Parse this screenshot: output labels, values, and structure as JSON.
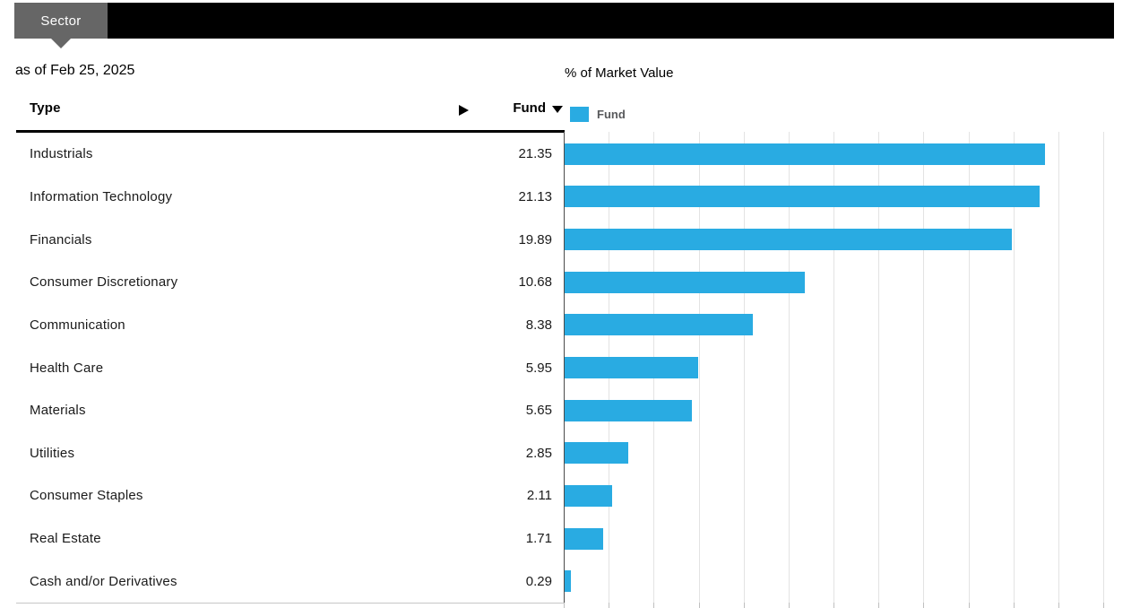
{
  "header": {
    "tab_label": "Sector"
  },
  "subtitle": "as of Feb 25, 2025",
  "chart_title": "% of Market Value",
  "legend": {
    "label": "Fund"
  },
  "table": {
    "columns": {
      "type": "Type",
      "fund": "Fund"
    },
    "rows": [
      {
        "label": "Industrials",
        "value": "21.35"
      },
      {
        "label": "Information Technology",
        "value": "21.13"
      },
      {
        "label": "Financials",
        "value": "19.89"
      },
      {
        "label": "Consumer Discretionary",
        "value": "10.68"
      },
      {
        "label": "Communication",
        "value": "8.38"
      },
      {
        "label": "Health Care",
        "value": "5.95"
      },
      {
        "label": "Materials",
        "value": "5.65"
      },
      {
        "label": "Utilities",
        "value": "2.85"
      },
      {
        "label": "Consumer Staples",
        "value": "2.11"
      },
      {
        "label": "Real Estate",
        "value": "1.71"
      },
      {
        "label": "Cash and/or Derivatives",
        "value": "0.29"
      }
    ]
  },
  "colors": {
    "bar": "#29ABE2",
    "tab": "#666666",
    "topbar": "#000000",
    "gridline": "#E3E3E3",
    "axis": "#4A4A4A"
  },
  "chart_data": {
    "type": "bar",
    "orientation": "horizontal",
    "title": "% of Market Value",
    "categories": [
      "Industrials",
      "Information Technology",
      "Financials",
      "Consumer Discretionary",
      "Communication",
      "Health Care",
      "Materials",
      "Utilities",
      "Consumer Staples",
      "Real Estate",
      "Cash and/or Derivatives"
    ],
    "series": [
      {
        "name": "Fund",
        "values": [
          21.35,
          21.13,
          19.89,
          10.68,
          8.38,
          5.95,
          5.65,
          2.85,
          2.11,
          1.71,
          0.29
        ]
      }
    ],
    "xlim": [
      0,
      24
    ],
    "gridline_step": 2,
    "grid": true,
    "legend_position": "top-left",
    "bar_color": "#29ABE2",
    "as_of": "Feb 25, 2025"
  }
}
